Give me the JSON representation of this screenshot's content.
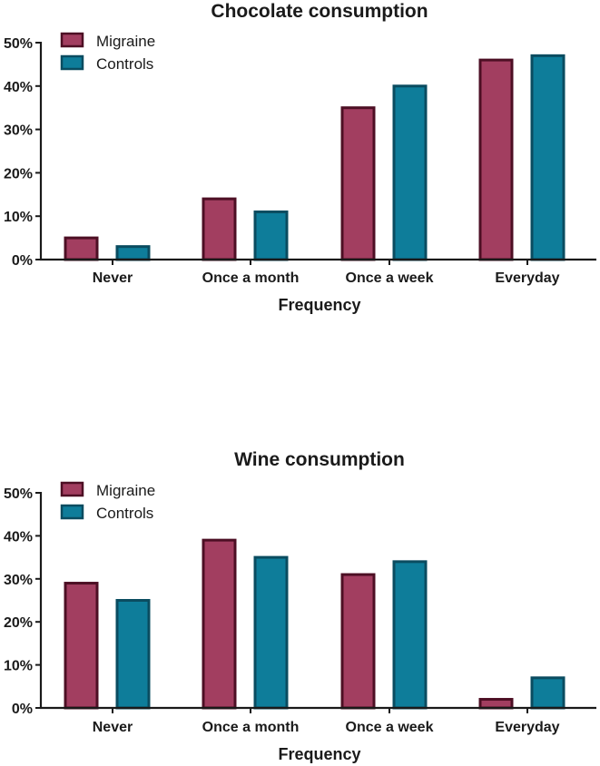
{
  "colors": {
    "migraine_fill": "#a23e60",
    "migraine_stroke": "#4d0f24",
    "controls_fill": "#0e7d9a",
    "controls_stroke": "#0a4c60",
    "axis": "#1a1a1a"
  },
  "chart_data": [
    {
      "type": "bar",
      "title": "Chocolate consumption",
      "xlabel": "Frequency",
      "ylabel": "",
      "categories": [
        "Never",
        "Once a month",
        "Once a week",
        "Everyday"
      ],
      "yticks": [
        "0%",
        "10%",
        "20%",
        "30%",
        "40%",
        "50%"
      ],
      "ylim": [
        0,
        50
      ],
      "legend_position": "top-left",
      "series": [
        {
          "name": "Migraine",
          "values": [
            5,
            14,
            35,
            46
          ]
        },
        {
          "name": "Controls",
          "values": [
            3,
            11,
            40,
            47
          ]
        }
      ]
    },
    {
      "type": "bar",
      "title": "Wine consumption",
      "xlabel": "Frequency",
      "ylabel": "",
      "categories": [
        "Never",
        "Once a month",
        "Once a week",
        "Everyday"
      ],
      "yticks": [
        "0%",
        "10%",
        "20%",
        "30%",
        "40%",
        "50%"
      ],
      "ylim": [
        0,
        50
      ],
      "legend_position": "top-left",
      "series": [
        {
          "name": "Migraine",
          "values": [
            29,
            39,
            31,
            2
          ]
        },
        {
          "name": "Controls",
          "values": [
            25,
            35,
            34,
            7
          ]
        }
      ]
    }
  ]
}
